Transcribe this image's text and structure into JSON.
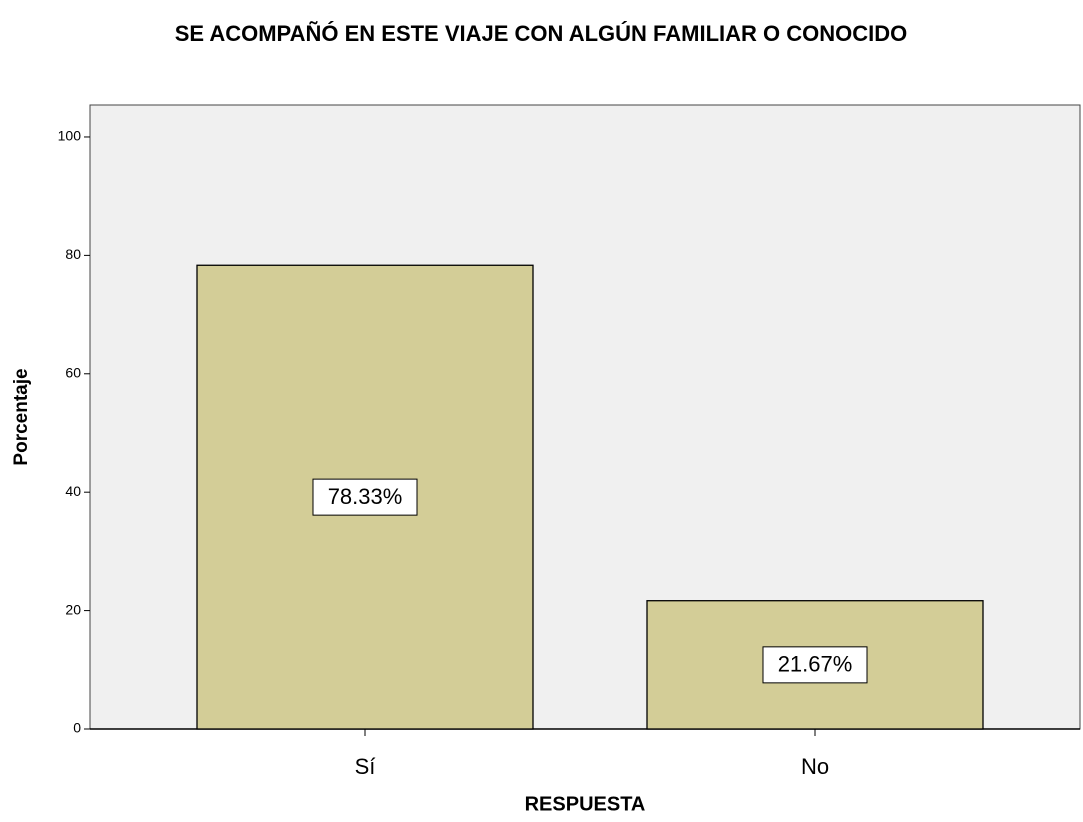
{
  "chart_data": {
    "type": "bar",
    "title": "SE ACOMPAÑÓ EN ESTE VIAJE CON ALGÚN FAMILIAR O CONOCIDO",
    "x_label": "RESPUESTA",
    "y_label": "Porcentaje",
    "categories": [
      "Sí",
      "No"
    ],
    "values": [
      78.33,
      21.67
    ],
    "value_labels": [
      "78.33%",
      "21.67%"
    ],
    "color": "#d3cd97",
    "ylim": [
      0,
      105.4
    ],
    "yticks": [
      0,
      20,
      40,
      60,
      80,
      100
    ],
    "grid": false
  }
}
